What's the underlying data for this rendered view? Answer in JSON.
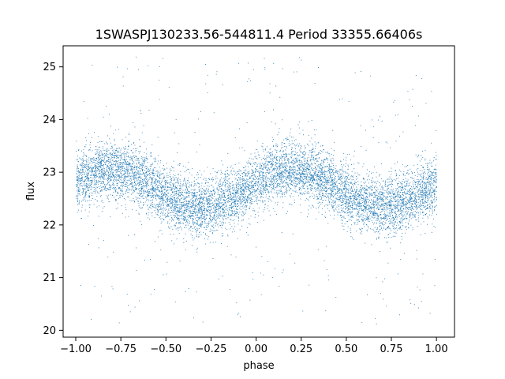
{
  "chart_data": {
    "type": "scatter",
    "title": "1SWASPJ130233.56-544811.4 Period 33355.66406s",
    "xlabel": "phase",
    "ylabel": "flux",
    "xlim": [
      -1.07,
      1.1
    ],
    "ylim": [
      19.87,
      25.4
    ],
    "xticks": [
      -1.0,
      -0.75,
      -0.5,
      -0.25,
      0.0,
      0.25,
      0.5,
      0.75,
      1.0
    ],
    "xtick_labels": [
      "−1.00",
      "−0.75",
      "−0.50",
      "−0.25",
      "0.00",
      "0.25",
      "0.50",
      "0.75",
      "1.00"
    ],
    "yticks": [
      20,
      21,
      22,
      23,
      24,
      25
    ],
    "ytick_labels": [
      "20",
      "21",
      "22",
      "23",
      "24",
      "25"
    ],
    "grid": false,
    "point_color": "#1f77b4",
    "series": [
      {
        "curve": {
          "mean": 22.7,
          "amplitude": 0.35,
          "period_in_phase": 1.0,
          "peak_phase": 0.2,
          "scatter_sigma": 0.28,
          "outlier_range": [
            20.1,
            25.2
          ]
        },
        "x_range": [
          -1.0,
          1.0
        ],
        "n_points": 9000
      }
    ]
  }
}
